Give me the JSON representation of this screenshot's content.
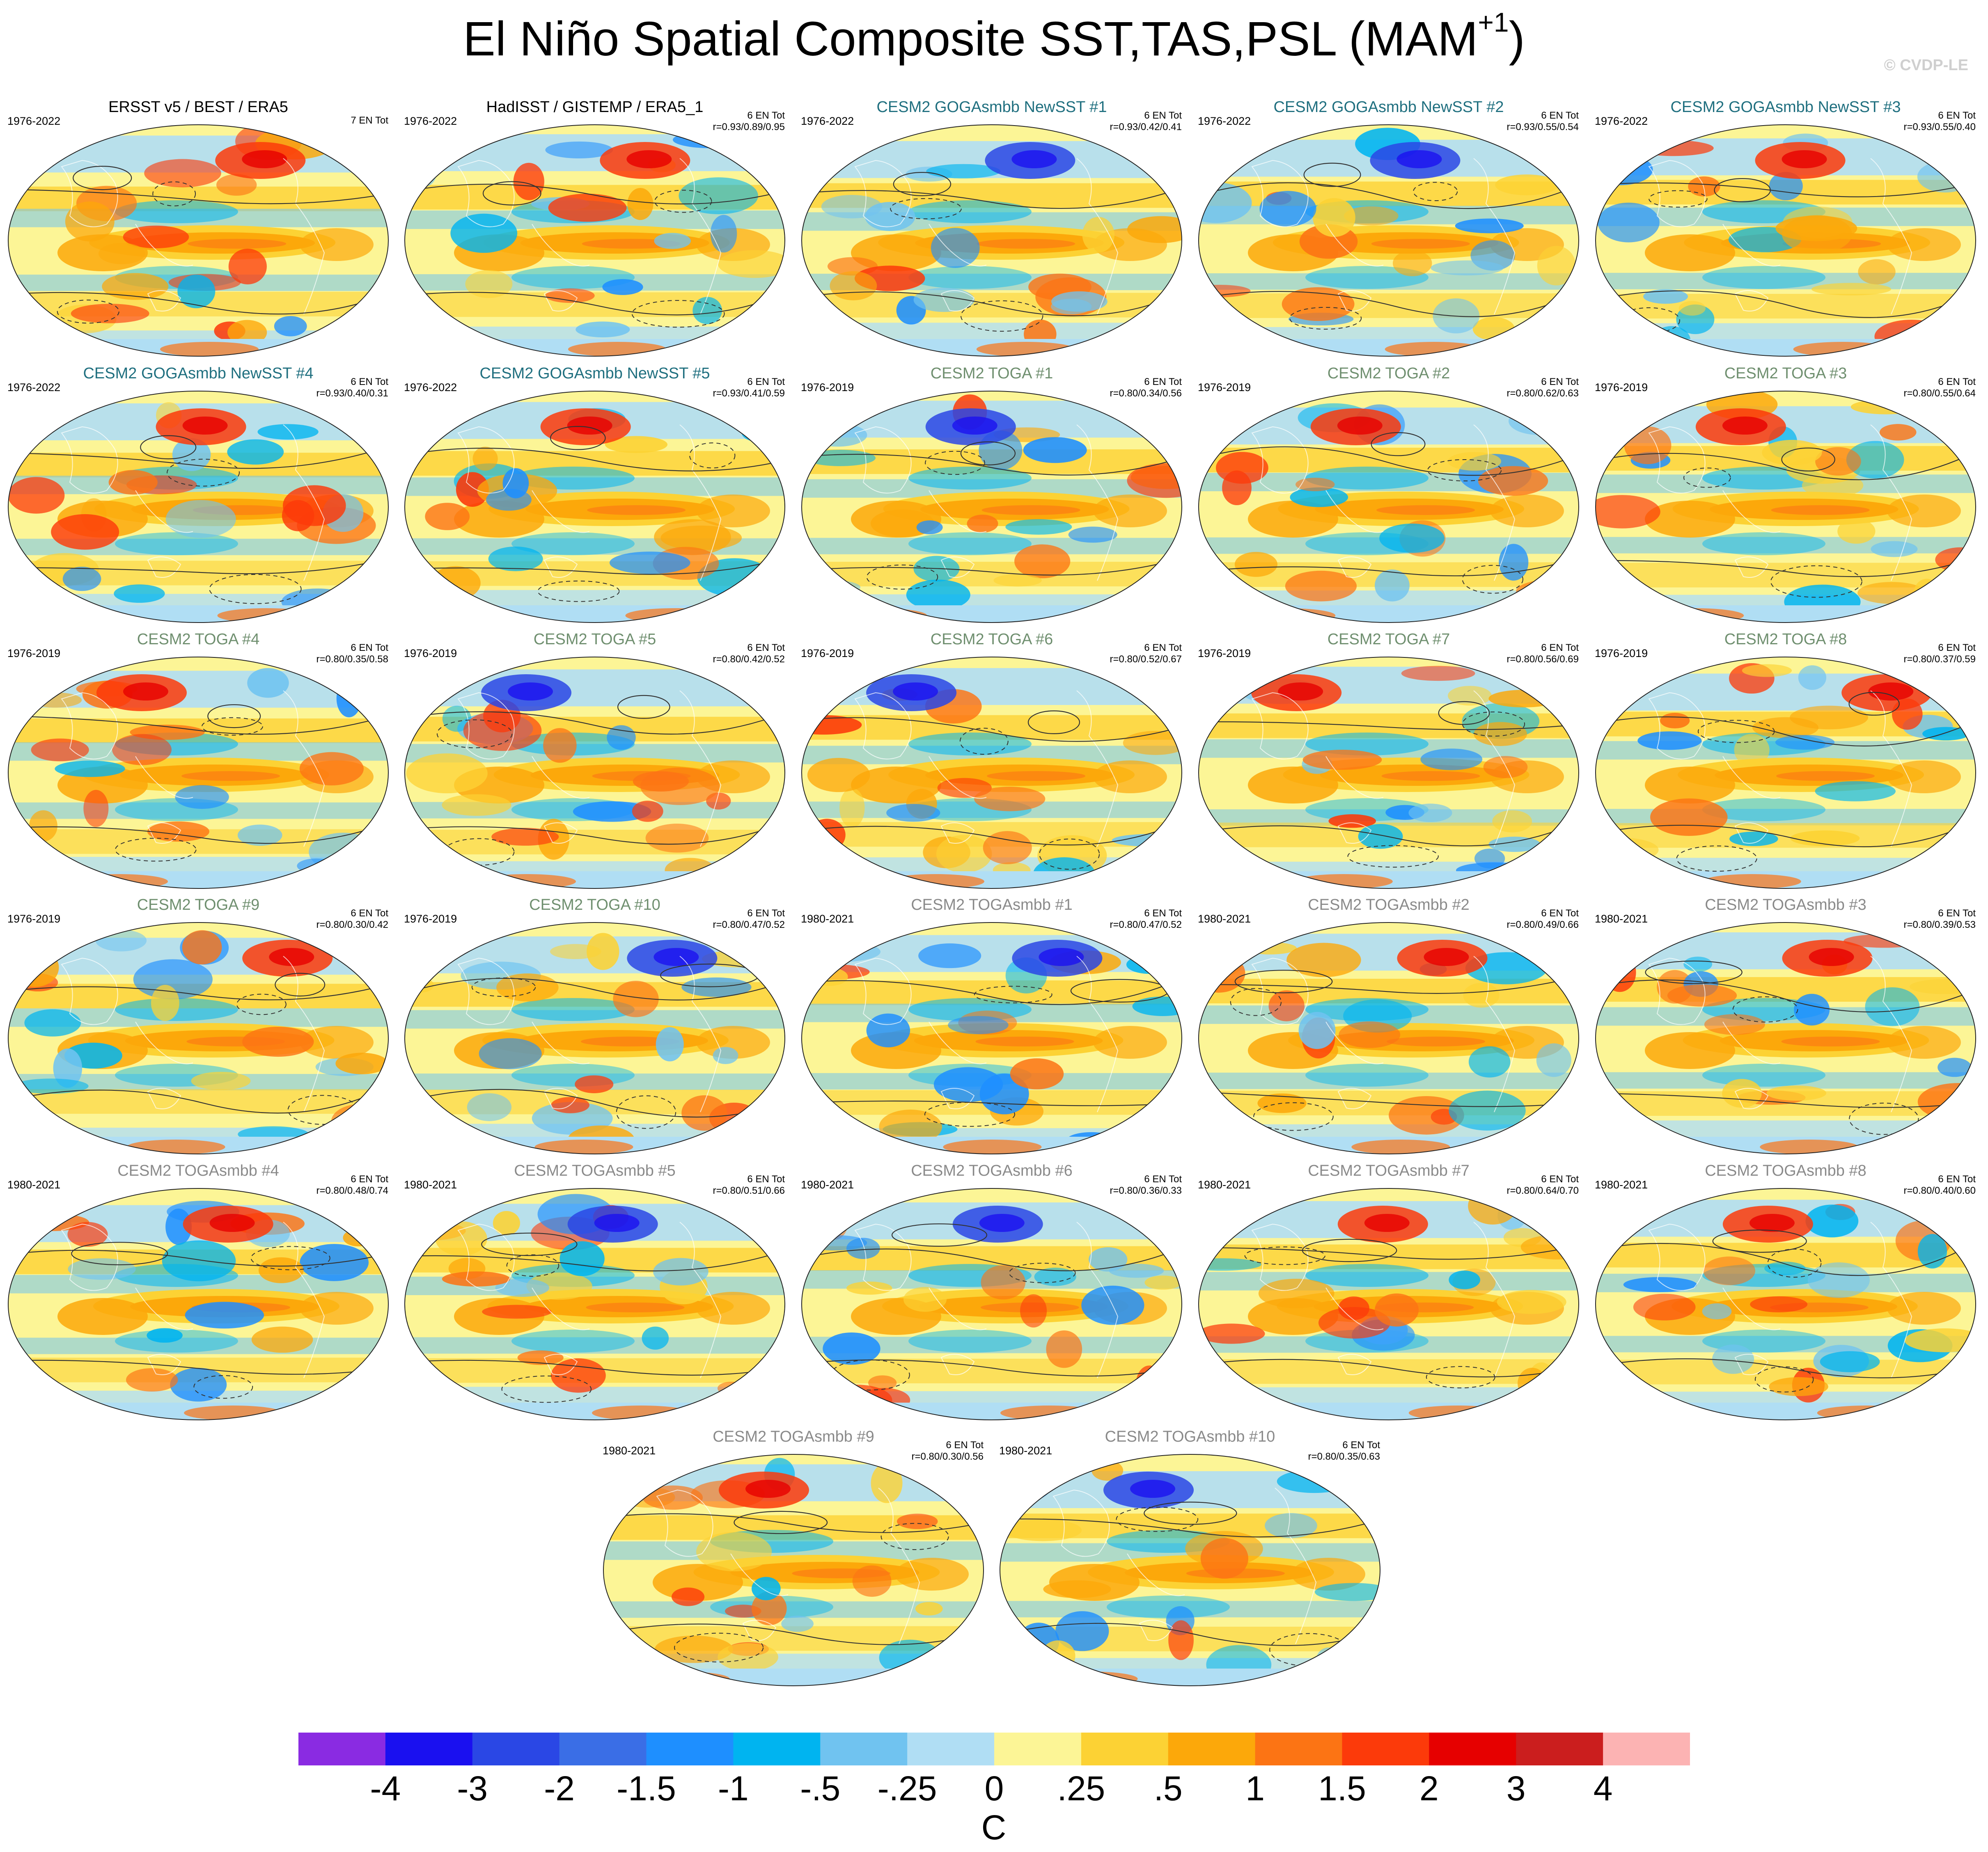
{
  "header": {
    "title_main": "El Niño Spatial Composite SST,TAS,PSL (MAM",
    "title_sup": "+1",
    "title_end": ")",
    "copyright": "© CVDP-LE"
  },
  "chart_data": {
    "type": "heatmap",
    "layout": "grid of global SST/TAS/PSL composite maps (Robinson-like projection)",
    "colorbar": {
      "units": "C",
      "labels": [
        "-4",
        "-3",
        "-2",
        "-1.5",
        "-1",
        "-.5",
        "-.25",
        "0",
        ".25",
        ".5",
        "1",
        "1.5",
        "2",
        "3",
        "4"
      ],
      "colors": [
        "#8a2be2",
        "#1a10f0",
        "#2a47e5",
        "#3a6ee6",
        "#1e8fff",
        "#00b4f0",
        "#70c3f0",
        "#b0def4",
        "#fcf596",
        "#fcd234",
        "#fca80a",
        "#fc7414",
        "#fc3a0a",
        "#e60000",
        "#cb1e1e",
        "#fcb3b3"
      ]
    },
    "panels": [
      {
        "title": "ERSST v5 / BEST / ERA5",
        "years": "1976-2022",
        "en": "7 EN Tot",
        "r": "",
        "title_color": "#000000"
      },
      {
        "title": "HadISST / GISTEMP / ERA5_1",
        "years": "1976-2022",
        "en": "6 EN Tot",
        "r": "r=0.93/0.89/0.95",
        "title_color": "#000000"
      },
      {
        "title": "CESM2 GOGAsmbb NewSST #1",
        "years": "1976-2022",
        "en": "6 EN Tot",
        "r": "r=0.93/0.42/0.41",
        "title_color": "#1f6f7f"
      },
      {
        "title": "CESM2 GOGAsmbb NewSST #2",
        "years": "1976-2022",
        "en": "6 EN Tot",
        "r": "r=0.93/0.55/0.54",
        "title_color": "#1f6f7f"
      },
      {
        "title": "CESM2 GOGAsmbb NewSST #3",
        "years": "1976-2022",
        "en": "6 EN Tot",
        "r": "r=0.93/0.55/0.40",
        "title_color": "#1f6f7f"
      },
      {
        "title": "CESM2 GOGAsmbb NewSST #4",
        "years": "1976-2022",
        "en": "6 EN Tot",
        "r": "r=0.93/0.40/0.31",
        "title_color": "#1f6f7f"
      },
      {
        "title": "CESM2 GOGAsmbb NewSST #5",
        "years": "1976-2022",
        "en": "6 EN Tot",
        "r": "r=0.93/0.41/0.59",
        "title_color": "#1f6f7f"
      },
      {
        "title": "CESM2 TOGA #1",
        "years": "1976-2019",
        "en": "6 EN Tot",
        "r": "r=0.80/0.34/0.56",
        "title_color": "#6f8f6f"
      },
      {
        "title": "CESM2 TOGA #2",
        "years": "1976-2019",
        "en": "6 EN Tot",
        "r": "r=0.80/0.62/0.63",
        "title_color": "#6f8f6f"
      },
      {
        "title": "CESM2 TOGA #3",
        "years": "1976-2019",
        "en": "6 EN Tot",
        "r": "r=0.80/0.55/0.64",
        "title_color": "#6f8f6f"
      },
      {
        "title": "CESM2 TOGA #4",
        "years": "1976-2019",
        "en": "6 EN Tot",
        "r": "r=0.80/0.35/0.58",
        "title_color": "#6f8f6f"
      },
      {
        "title": "CESM2 TOGA #5",
        "years": "1976-2019",
        "en": "6 EN Tot",
        "r": "r=0.80/0.42/0.52",
        "title_color": "#6f8f6f"
      },
      {
        "title": "CESM2 TOGA #6",
        "years": "1976-2019",
        "en": "6 EN Tot",
        "r": "r=0.80/0.52/0.67",
        "title_color": "#6f8f6f"
      },
      {
        "title": "CESM2 TOGA #7",
        "years": "1976-2019",
        "en": "6 EN Tot",
        "r": "r=0.80/0.56/0.69",
        "title_color": "#6f8f6f"
      },
      {
        "title": "CESM2 TOGA #8",
        "years": "1976-2019",
        "en": "6 EN Tot",
        "r": "r=0.80/0.37/0.59",
        "title_color": "#6f8f6f"
      },
      {
        "title": "CESM2 TOGA #9",
        "years": "1976-2019",
        "en": "6 EN Tot",
        "r": "r=0.80/0.30/0.42",
        "title_color": "#6f8f6f"
      },
      {
        "title": "CESM2 TOGA #10",
        "years": "1976-2019",
        "en": "6 EN Tot",
        "r": "r=0.80/0.47/0.52",
        "title_color": "#6f8f6f"
      },
      {
        "title": "CESM2 TOGAsmbb #1",
        "years": "1980-2021",
        "en": "6 EN Tot",
        "r": "r=0.80/0.47/0.52",
        "title_color": "#8a8a8a"
      },
      {
        "title": "CESM2 TOGAsmbb #2",
        "years": "1980-2021",
        "en": "6 EN Tot",
        "r": "r=0.80/0.49/0.66",
        "title_color": "#8a8a8a"
      },
      {
        "title": "CESM2 TOGAsmbb #3",
        "years": "1980-2021",
        "en": "6 EN Tot",
        "r": "r=0.80/0.39/0.53",
        "title_color": "#8a8a8a"
      },
      {
        "title": "CESM2 TOGAsmbb #4",
        "years": "1980-2021",
        "en": "6 EN Tot",
        "r": "r=0.80/0.48/0.74",
        "title_color": "#8a8a8a"
      },
      {
        "title": "CESM2 TOGAsmbb #5",
        "years": "1980-2021",
        "en": "6 EN Tot",
        "r": "r=0.80/0.51/0.66",
        "title_color": "#8a8a8a"
      },
      {
        "title": "CESM2 TOGAsmbb #6",
        "years": "1980-2021",
        "en": "6 EN Tot",
        "r": "r=0.80/0.36/0.33",
        "title_color": "#8a8a8a"
      },
      {
        "title": "CESM2 TOGAsmbb #7",
        "years": "1980-2021",
        "en": "6 EN Tot",
        "r": "r=0.80/0.64/0.70",
        "title_color": "#8a8a8a"
      },
      {
        "title": "CESM2 TOGAsmbb #8",
        "years": "1980-2021",
        "en": "6 EN Tot",
        "r": "r=0.80/0.40/0.60",
        "title_color": "#8a8a8a"
      },
      {
        "title": "CESM2 TOGAsmbb #9",
        "years": "1980-2021",
        "en": "6 EN Tot",
        "r": "r=0.80/0.30/0.56",
        "title_color": "#8a8a8a"
      },
      {
        "title": "CESM2 TOGAsmbb #10",
        "years": "1980-2021",
        "en": "6 EN Tot",
        "r": "r=0.80/0.35/0.63",
        "title_color": "#8a8a8a"
      }
    ]
  }
}
